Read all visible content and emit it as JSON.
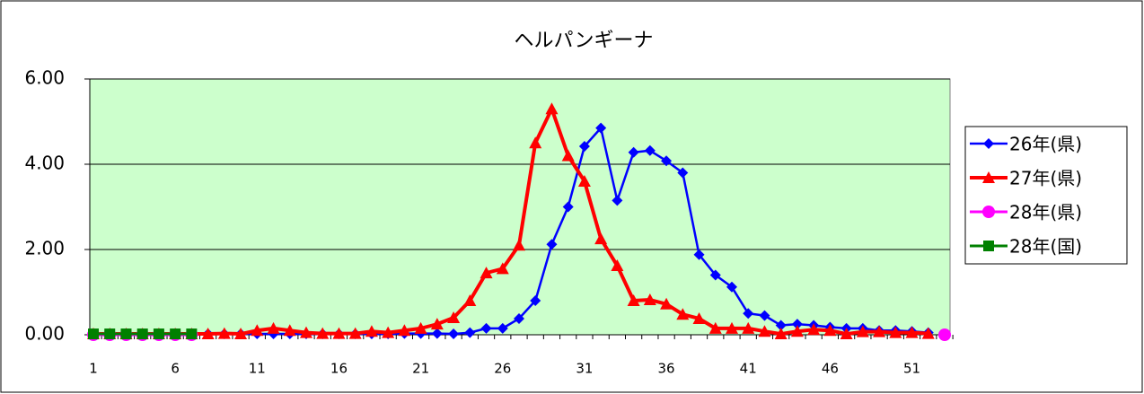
{
  "chart_data": {
    "type": "line",
    "title": "ヘルパンギーナ",
    "categories": [
      1,
      null,
      null,
      null,
      null,
      6,
      null,
      null,
      null,
      null,
      11,
      null,
      null,
      null,
      null,
      16,
      null,
      null,
      null,
      null,
      21,
      null,
      null,
      null,
      null,
      26,
      null,
      null,
      null,
      null,
      31,
      null,
      null,
      null,
      null,
      36,
      null,
      null,
      null,
      null,
      41,
      null,
      null,
      null,
      null,
      46,
      null,
      null,
      null,
      null,
      51,
      null,
      null
    ],
    "ylim": [
      0,
      6
    ],
    "yticks": [
      {
        "value": 0,
        "label": "0.00"
      },
      {
        "value": 2,
        "label": "2.00"
      },
      {
        "value": 4,
        "label": "4.00"
      },
      {
        "value": 6,
        "label": "6.00"
      }
    ],
    "grid": true,
    "legend": "right",
    "plot_background": "#ccffcc",
    "series": [
      {
        "name": "26年(県)",
        "color": "#0000ff",
        "marker": "diamond",
        "values": [
          0.02,
          0.02,
          0.02,
          0.02,
          0.02,
          0.02,
          0.02,
          0.02,
          0.02,
          0.02,
          0.02,
          0.02,
          0.02,
          0.02,
          0.02,
          0.02,
          0.02,
          0.02,
          0.02,
          0.03,
          0.03,
          0.03,
          0.02,
          0.05,
          0.15,
          0.15,
          0.38,
          0.8,
          2.12,
          3.0,
          4.42,
          4.85,
          3.15,
          4.28,
          4.32,
          4.08,
          3.8,
          1.88,
          1.4,
          1.12,
          0.5,
          0.45,
          0.22,
          0.25,
          0.22,
          0.18,
          0.15,
          0.15,
          0.1,
          0.1,
          0.08,
          0.05,
          null
        ]
      },
      {
        "name": "27年(県)",
        "color": "#ff0000",
        "marker": "triangle",
        "values": [
          0.02,
          0.02,
          0.02,
          0.02,
          0.02,
          0.02,
          0.02,
          0.02,
          0.03,
          0.02,
          0.1,
          0.15,
          0.1,
          0.05,
          0.03,
          0.03,
          0.03,
          0.08,
          0.05,
          0.1,
          0.15,
          0.25,
          0.4,
          0.8,
          1.45,
          1.55,
          2.1,
          4.5,
          5.3,
          4.2,
          3.6,
          2.25,
          1.62,
          0.8,
          0.82,
          0.72,
          0.48,
          0.38,
          0.15,
          0.15,
          0.15,
          0.08,
          0.02,
          0.08,
          0.12,
          0.1,
          0.02,
          0.07,
          0.07,
          0.05,
          0.05,
          0.03,
          null
        ]
      },
      {
        "name": "28年(県)",
        "color": "#ff00ff",
        "marker": "circle",
        "values": [
          0,
          0,
          0,
          0,
          0,
          0,
          0,
          null,
          null,
          null,
          null,
          null,
          null,
          null,
          null,
          null,
          null,
          null,
          null,
          null,
          null,
          null,
          null,
          null,
          null,
          null,
          null,
          null,
          null,
          null,
          null,
          null,
          null,
          null,
          null,
          null,
          null,
          null,
          null,
          null,
          null,
          null,
          null,
          null,
          null,
          null,
          null,
          null,
          null,
          null,
          null,
          null,
          0
        ]
      },
      {
        "name": "28年(国)",
        "color": "#008000",
        "marker": "square",
        "values": [
          0.02,
          0.02,
          0.02,
          0.02,
          0.02,
          0.02,
          0.02,
          null,
          null,
          null,
          null,
          null,
          null,
          null,
          null,
          null,
          null,
          null,
          null,
          null,
          null,
          null,
          null,
          null,
          null,
          null,
          null,
          null,
          null,
          null,
          null,
          null,
          null,
          null,
          null,
          null,
          null,
          null,
          null,
          null,
          null,
          null,
          null,
          null,
          null,
          null,
          null,
          null,
          null,
          null,
          null,
          null,
          null
        ]
      }
    ]
  }
}
